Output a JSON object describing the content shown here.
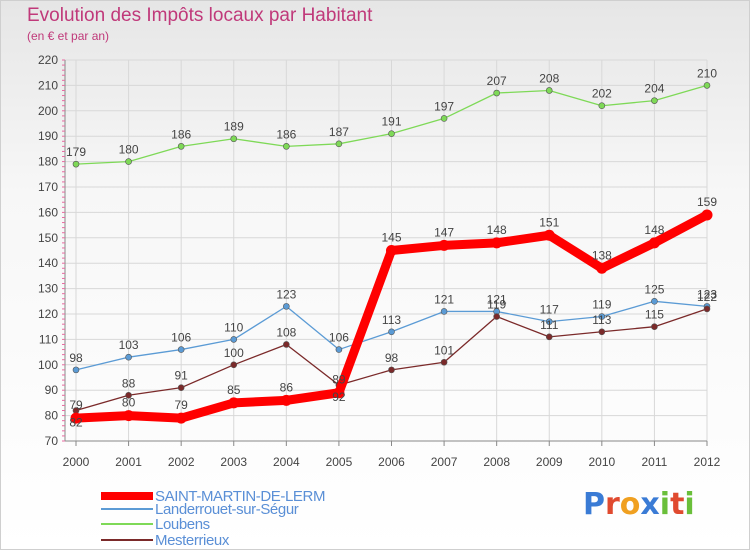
{
  "chart_data": {
    "type": "line",
    "title": "Evolution des Impôts locaux par Habitant",
    "subtitle": "(en € et par an)",
    "categories": [
      "2000",
      "2001",
      "2002",
      "2003",
      "2004",
      "2005",
      "2006",
      "2007",
      "2008",
      "2009",
      "2010",
      "2011",
      "2012"
    ],
    "ylim": [
      70,
      220
    ],
    "yticks": [
      70,
      80,
      90,
      100,
      110,
      120,
      130,
      140,
      150,
      160,
      170,
      180,
      190,
      200,
      210,
      220
    ],
    "grid": true,
    "series": [
      {
        "name": "SAINT-MARTIN-DE-LERM",
        "color": "#ff0000",
        "values": [
          79,
          80,
          79,
          85,
          86,
          89,
          145,
          147,
          148,
          151,
          138,
          148,
          159
        ],
        "labels": [
          "79",
          "80",
          "79",
          "85",
          "86",
          "89",
          "145",
          "147",
          "148",
          "151",
          "138",
          "148",
          "159"
        ]
      },
      {
        "name": "Landerrouet-sur-Ségur",
        "color": "#5b9bd5",
        "values": [
          98,
          103,
          106,
          110,
          123,
          106,
          113,
          121,
          121,
          117,
          119,
          125,
          123
        ],
        "labels": [
          "98",
          "103",
          "106",
          "110",
          "123",
          "106",
          "113",
          "121",
          "121",
          "117",
          "119",
          "125",
          "123"
        ]
      },
      {
        "name": "Loubens",
        "color": "#7ed957",
        "values": [
          179,
          180,
          186,
          189,
          186,
          187,
          191,
          197,
          207,
          208,
          202,
          204,
          210
        ],
        "labels": [
          "179",
          "180",
          "186",
          "189",
          "186",
          "187",
          "191",
          "197",
          "207",
          "208",
          "202",
          "204",
          "210"
        ]
      },
      {
        "name": "Mesterrieux",
        "color": "#7b2a2a",
        "values": [
          82,
          88,
          91,
          100,
          108,
          92,
          98,
          101,
          119,
          111,
          113,
          115,
          122
        ],
        "labels": [
          "82",
          "88",
          "91",
          "100",
          "108",
          "92",
          "98",
          "101",
          "119",
          "111",
          "113",
          "115",
          "122"
        ]
      }
    ]
  },
  "brand": {
    "letters": [
      "P",
      "r",
      "o",
      "x",
      "i",
      "t",
      "i"
    ],
    "colors": [
      "#3a7bd5",
      "#e04a2f",
      "#f0a020",
      "#3a7bd5",
      "#6abf3a",
      "#e04a2f",
      "#6abf3a"
    ]
  }
}
